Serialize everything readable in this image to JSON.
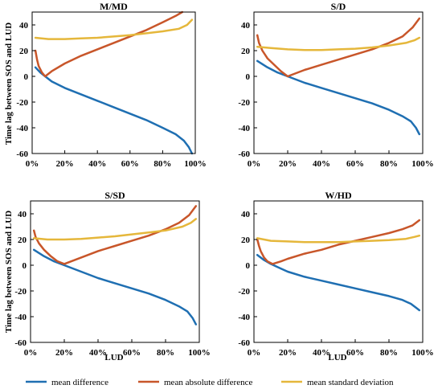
{
  "chart_data": {
    "type": "line",
    "figure": {
      "shared_ylabel": "Time lag between SOS and LUD",
      "shared_xlabel": "LUD",
      "legend_position": "bottom"
    },
    "series_names": [
      "mean difference",
      "mean absolute difference",
      "mean standard deviation"
    ],
    "colors": {
      "mean difference": "#1f6fb2",
      "mean absolute difference": "#c8562a",
      "mean standard deviation": "#e5b73b"
    },
    "x_ticks": [
      "0%",
      "20%",
      "40%",
      "60%",
      "80%",
      "100%"
    ],
    "xlim": [
      0,
      100
    ],
    "panels": [
      {
        "title": "M/MD",
        "ylim": [
          -60,
          50
        ],
        "y_ticks": [
          40,
          20,
          0,
          -20,
          -40,
          -60
        ],
        "series": [
          {
            "name": "mean difference",
            "x": [
              2,
              5,
              8,
              12,
              20,
              30,
              40,
              50,
              60,
              70,
              80,
              88,
              93,
              96,
              98
            ],
            "y": [
              7,
              3,
              0,
              -4,
              -9,
              -14,
              -19,
              -24,
              -29,
              -34,
              -40,
              -45,
              -50,
              -55,
              -60
            ]
          },
          {
            "name": "mean absolute difference",
            "x": [
              2,
              3,
              4,
              6,
              8,
              12,
              20,
              30,
              40,
              50,
              60,
              70,
              80,
              88,
              92
            ],
            "y": [
              20,
              13,
              8,
              3,
              0,
              4,
              10,
              16,
              21,
              26,
              31,
              36,
              42,
              47,
              50
            ]
          },
          {
            "name": "mean standard deviation",
            "x": [
              2,
              10,
              20,
              30,
              40,
              50,
              60,
              70,
              80,
              90,
              95,
              98
            ],
            "y": [
              30,
              29,
              29,
              29.5,
              30,
              31,
              32,
              33.5,
              35,
              37,
              40,
              44
            ]
          }
        ]
      },
      {
        "title": "S/D",
        "ylim": [
          -60,
          50
        ],
        "y_ticks": [
          40,
          20,
          0,
          -20,
          -40,
          -60
        ],
        "series": [
          {
            "name": "mean difference",
            "x": [
              2,
              8,
              14,
              20,
              30,
              40,
              50,
              60,
              70,
              80,
              88,
              93,
              96,
              98
            ],
            "y": [
              12,
              7,
              3,
              0,
              -5,
              -9,
              -13,
              -17,
              -21,
              -26,
              -31,
              -35,
              -40,
              -45
            ]
          },
          {
            "name": "mean absolute difference",
            "x": [
              2,
              3,
              5,
              8,
              12,
              16,
              20,
              30,
              40,
              50,
              60,
              70,
              80,
              88,
              94,
              98
            ],
            "y": [
              32,
              26,
              20,
              14,
              9,
              4,
              0,
              5,
              9,
              13,
              17,
              21,
              26,
              31,
              38,
              45
            ]
          },
          {
            "name": "mean standard deviation",
            "x": [
              2,
              10,
              20,
              30,
              40,
              50,
              60,
              70,
              80,
              90,
              95,
              98
            ],
            "y": [
              23,
              22,
              21,
              20.5,
              20.5,
              21,
              21.5,
              22.5,
              24,
              26,
              28,
              30
            ]
          }
        ]
      },
      {
        "title": "S/SD",
        "ylim": [
          -60,
          50
        ],
        "y_ticks": [
          40,
          20,
          0,
          -20,
          -40,
          -60
        ],
        "series": [
          {
            "name": "mean difference",
            "x": [
              2,
              8,
              14,
              20,
              30,
              40,
              50,
              60,
              70,
              80,
              88,
              93,
              96,
              98
            ],
            "y": [
              12,
              7,
              3,
              0,
              -5,
              -10,
              -14,
              -18,
              -22,
              -27,
              -32,
              -36,
              -41,
              -46
            ]
          },
          {
            "name": "mean absolute difference",
            "x": [
              2,
              3,
              5,
              8,
              12,
              16,
              20,
              30,
              40,
              50,
              60,
              70,
              80,
              88,
              94,
              98
            ],
            "y": [
              27,
              22,
              17,
              12,
              7,
              3,
              1,
              6,
              11,
              15,
              19,
              23,
              28,
              33,
              39,
              46
            ]
          },
          {
            "name": "mean standard deviation",
            "x": [
              2,
              10,
              20,
              30,
              40,
              50,
              60,
              70,
              80,
              90,
              95,
              98
            ],
            "y": [
              21,
              20,
              20,
              20.5,
              21.5,
              22.5,
              24,
              25.5,
              27,
              30,
              33,
              36
            ]
          }
        ]
      },
      {
        "title": "W/HD",
        "ylim": [
          -60,
          50
        ],
        "y_ticks": [
          40,
          20,
          0,
          -20,
          -40,
          -60
        ],
        "series": [
          {
            "name": "mean difference",
            "x": [
              2,
              6,
              10,
              15,
              20,
              30,
              40,
              50,
              60,
              70,
              80,
              88,
              93,
              96,
              98
            ],
            "y": [
              8,
              4,
              1,
              -2,
              -5,
              -9,
              -12,
              -15,
              -18,
              -21,
              -24,
              -27,
              -30,
              -33,
              -35
            ]
          },
          {
            "name": "mean absolute difference",
            "x": [
              2,
              3,
              4,
              6,
              8,
              11,
              16,
              20,
              30,
              40,
              50,
              60,
              70,
              80,
              88,
              94,
              98
            ],
            "y": [
              20,
              15,
              11,
              6,
              3,
              1,
              3,
              5,
              9,
              12,
              16,
              19,
              22,
              25,
              28,
              31,
              35
            ]
          },
          {
            "name": "mean standard deviation",
            "x": [
              2,
              10,
              20,
              30,
              40,
              50,
              60,
              70,
              80,
              90,
              95,
              98
            ],
            "y": [
              21,
              19,
              18.5,
              18,
              18,
              18,
              18.5,
              19,
              19.5,
              20.5,
              22,
              23
            ]
          }
        ]
      }
    ]
  }
}
